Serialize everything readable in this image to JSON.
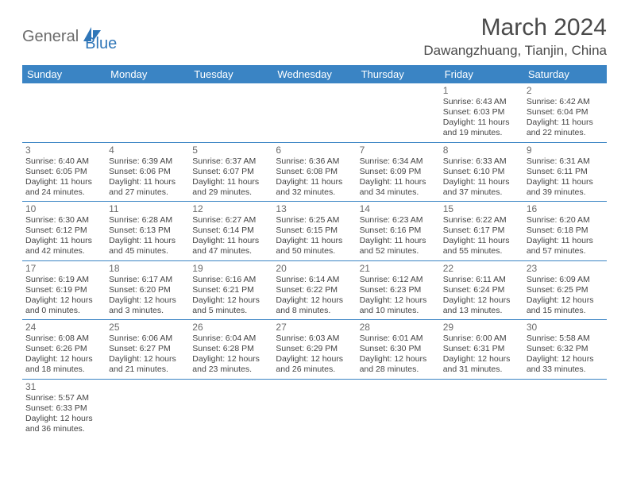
{
  "logo": {
    "text1": "General",
    "text2": "Blue",
    "sail_color": "#2f76b8"
  },
  "header": {
    "month_title": "March 2024",
    "location": "Dawangzhuang, Tianjin, China"
  },
  "style": {
    "header_bg": "#3a84c4",
    "header_text": "#ffffff",
    "cell_border": "#3a84c4",
    "daynum_color": "#6a6a6a",
    "info_color": "#444444",
    "info_fontsize": 10.5,
    "daynum_fontsize": 12
  },
  "day_headers": [
    "Sunday",
    "Monday",
    "Tuesday",
    "Wednesday",
    "Thursday",
    "Friday",
    "Saturday"
  ],
  "weeks": [
    [
      null,
      null,
      null,
      null,
      null,
      {
        "n": "1",
        "sunrise": "6:43 AM",
        "sunset": "6:03 PM",
        "dlh": "11",
        "dlm": "19"
      },
      {
        "n": "2",
        "sunrise": "6:42 AM",
        "sunset": "6:04 PM",
        "dlh": "11",
        "dlm": "22"
      }
    ],
    [
      {
        "n": "3",
        "sunrise": "6:40 AM",
        "sunset": "6:05 PM",
        "dlh": "11",
        "dlm": "24"
      },
      {
        "n": "4",
        "sunrise": "6:39 AM",
        "sunset": "6:06 PM",
        "dlh": "11",
        "dlm": "27"
      },
      {
        "n": "5",
        "sunrise": "6:37 AM",
        "sunset": "6:07 PM",
        "dlh": "11",
        "dlm": "29"
      },
      {
        "n": "6",
        "sunrise": "6:36 AM",
        "sunset": "6:08 PM",
        "dlh": "11",
        "dlm": "32"
      },
      {
        "n": "7",
        "sunrise": "6:34 AM",
        "sunset": "6:09 PM",
        "dlh": "11",
        "dlm": "34"
      },
      {
        "n": "8",
        "sunrise": "6:33 AM",
        "sunset": "6:10 PM",
        "dlh": "11",
        "dlm": "37"
      },
      {
        "n": "9",
        "sunrise": "6:31 AM",
        "sunset": "6:11 PM",
        "dlh": "11",
        "dlm": "39"
      }
    ],
    [
      {
        "n": "10",
        "sunrise": "6:30 AM",
        "sunset": "6:12 PM",
        "dlh": "11",
        "dlm": "42"
      },
      {
        "n": "11",
        "sunrise": "6:28 AM",
        "sunset": "6:13 PM",
        "dlh": "11",
        "dlm": "45"
      },
      {
        "n": "12",
        "sunrise": "6:27 AM",
        "sunset": "6:14 PM",
        "dlh": "11",
        "dlm": "47"
      },
      {
        "n": "13",
        "sunrise": "6:25 AM",
        "sunset": "6:15 PM",
        "dlh": "11",
        "dlm": "50"
      },
      {
        "n": "14",
        "sunrise": "6:23 AM",
        "sunset": "6:16 PM",
        "dlh": "11",
        "dlm": "52"
      },
      {
        "n": "15",
        "sunrise": "6:22 AM",
        "sunset": "6:17 PM",
        "dlh": "11",
        "dlm": "55"
      },
      {
        "n": "16",
        "sunrise": "6:20 AM",
        "sunset": "6:18 PM",
        "dlh": "11",
        "dlm": "57"
      }
    ],
    [
      {
        "n": "17",
        "sunrise": "6:19 AM",
        "sunset": "6:19 PM",
        "dlh": "12",
        "dlm": "0"
      },
      {
        "n": "18",
        "sunrise": "6:17 AM",
        "sunset": "6:20 PM",
        "dlh": "12",
        "dlm": "3"
      },
      {
        "n": "19",
        "sunrise": "6:16 AM",
        "sunset": "6:21 PM",
        "dlh": "12",
        "dlm": "5"
      },
      {
        "n": "20",
        "sunrise": "6:14 AM",
        "sunset": "6:22 PM",
        "dlh": "12",
        "dlm": "8"
      },
      {
        "n": "21",
        "sunrise": "6:12 AM",
        "sunset": "6:23 PM",
        "dlh": "12",
        "dlm": "10"
      },
      {
        "n": "22",
        "sunrise": "6:11 AM",
        "sunset": "6:24 PM",
        "dlh": "12",
        "dlm": "13"
      },
      {
        "n": "23",
        "sunrise": "6:09 AM",
        "sunset": "6:25 PM",
        "dlh": "12",
        "dlm": "15"
      }
    ],
    [
      {
        "n": "24",
        "sunrise": "6:08 AM",
        "sunset": "6:26 PM",
        "dlh": "12",
        "dlm": "18"
      },
      {
        "n": "25",
        "sunrise": "6:06 AM",
        "sunset": "6:27 PM",
        "dlh": "12",
        "dlm": "21"
      },
      {
        "n": "26",
        "sunrise": "6:04 AM",
        "sunset": "6:28 PM",
        "dlh": "12",
        "dlm": "23"
      },
      {
        "n": "27",
        "sunrise": "6:03 AM",
        "sunset": "6:29 PM",
        "dlh": "12",
        "dlm": "26"
      },
      {
        "n": "28",
        "sunrise": "6:01 AM",
        "sunset": "6:30 PM",
        "dlh": "12",
        "dlm": "28"
      },
      {
        "n": "29",
        "sunrise": "6:00 AM",
        "sunset": "6:31 PM",
        "dlh": "12",
        "dlm": "31"
      },
      {
        "n": "30",
        "sunrise": "5:58 AM",
        "sunset": "6:32 PM",
        "dlh": "12",
        "dlm": "33"
      }
    ],
    [
      {
        "n": "31",
        "sunrise": "5:57 AM",
        "sunset": "6:33 PM",
        "dlh": "12",
        "dlm": "36"
      },
      null,
      null,
      null,
      null,
      null,
      null
    ]
  ],
  "labels": {
    "sunrise": "Sunrise:",
    "sunset": "Sunset:",
    "daylight": "Daylight:",
    "hours": "hours",
    "and": "and",
    "minutes": "minutes."
  }
}
